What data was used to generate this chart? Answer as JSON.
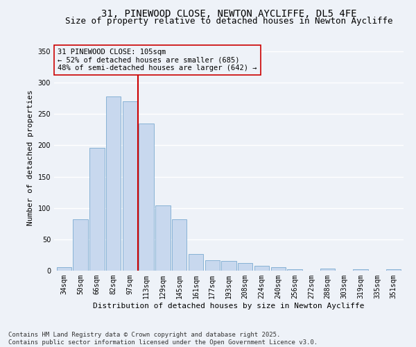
{
  "title_line1": "31, PINEWOOD CLOSE, NEWTON AYCLIFFE, DL5 4FE",
  "title_line2": "Size of property relative to detached houses in Newton Aycliffe",
  "xlabel": "Distribution of detached houses by size in Newton Aycliffe",
  "ylabel": "Number of detached properties",
  "bar_color": "#c8d8ee",
  "bar_edge_color": "#7aaad0",
  "categories": [
    "34sqm",
    "50sqm",
    "66sqm",
    "82sqm",
    "97sqm",
    "113sqm",
    "129sqm",
    "145sqm",
    "161sqm",
    "177sqm",
    "193sqm",
    "208sqm",
    "224sqm",
    "240sqm",
    "256sqm",
    "272sqm",
    "288sqm",
    "303sqm",
    "319sqm",
    "335sqm",
    "351sqm"
  ],
  "values": [
    5,
    82,
    196,
    278,
    270,
    235,
    104,
    82,
    27,
    17,
    15,
    12,
    8,
    5,
    2,
    0,
    3,
    0,
    2,
    0,
    2
  ],
  "vline_x": 4.5,
  "vline_color": "#cc0000",
  "annotation_text": "31 PINEWOOD CLOSE: 105sqm\n← 52% of detached houses are smaller (685)\n48% of semi-detached houses are larger (642) →",
  "ylim": [
    0,
    360
  ],
  "yticks": [
    0,
    50,
    100,
    150,
    200,
    250,
    300,
    350
  ],
  "background_color": "#eef2f8",
  "grid_color": "#ffffff",
  "footer_text": "Contains HM Land Registry data © Crown copyright and database right 2025.\nContains public sector information licensed under the Open Government Licence v3.0.",
  "title_fontsize": 10,
  "subtitle_fontsize": 9,
  "axis_label_fontsize": 8,
  "tick_fontsize": 7,
  "annotation_fontsize": 7.5,
  "footer_fontsize": 6.5
}
